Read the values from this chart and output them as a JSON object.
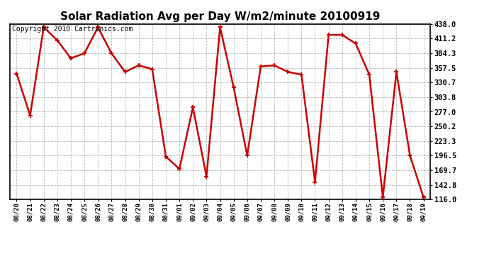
{
  "title": "Solar Radiation Avg per Day W/m2/minute 20100919",
  "copyright_text": "Copyright 2010 Cartronics.com",
  "dates": [
    "08/20",
    "08/21",
    "08/22",
    "08/23",
    "08/24",
    "08/25",
    "08/26",
    "08/27",
    "08/28",
    "08/29",
    "08/30",
    "08/31",
    "09/01",
    "09/02",
    "09/03",
    "09/04",
    "09/05",
    "09/06",
    "09/07",
    "09/08",
    "09/09",
    "09/10",
    "09/11",
    "09/12",
    "09/13",
    "09/14",
    "09/15",
    "09/16",
    "09/17",
    "09/18",
    "09/19"
  ],
  "values": [
    347.0,
    270.0,
    432.0,
    408.0,
    375.0,
    384.0,
    432.0,
    384.0,
    350.0,
    362.0,
    355.0,
    195.0,
    172.0,
    285.0,
    158.0,
    432.0,
    322.0,
    196.5,
    360.0,
    362.0,
    350.0,
    345.0,
    148.0,
    418.0,
    418.0,
    402.0,
    345.0,
    120.0,
    350.0,
    196.5,
    120.0
  ],
  "line_color": "#cc0000",
  "marker": "+",
  "marker_size": 5,
  "marker_linewidth": 1.5,
  "line_width": 1.8,
  "bg_color": "#ffffff",
  "grid_color": "#aaaaaa",
  "ylim": [
    116.0,
    438.0
  ],
  "ytick_labels": [
    "438.0",
    "411.2",
    "384.3",
    "357.5",
    "330.7",
    "303.8",
    "277.0",
    "250.2",
    "223.3",
    "196.5",
    "169.7",
    "142.8",
    "116.0"
  ],
  "ytick_values": [
    438.0,
    411.2,
    384.3,
    357.5,
    330.7,
    303.8,
    277.0,
    250.2,
    223.3,
    196.5,
    169.7,
    142.8,
    116.0
  ],
  "title_fontsize": 11,
  "copyright_fontsize": 7,
  "tick_fontsize": 7.5,
  "xtick_fontsize": 6.5
}
